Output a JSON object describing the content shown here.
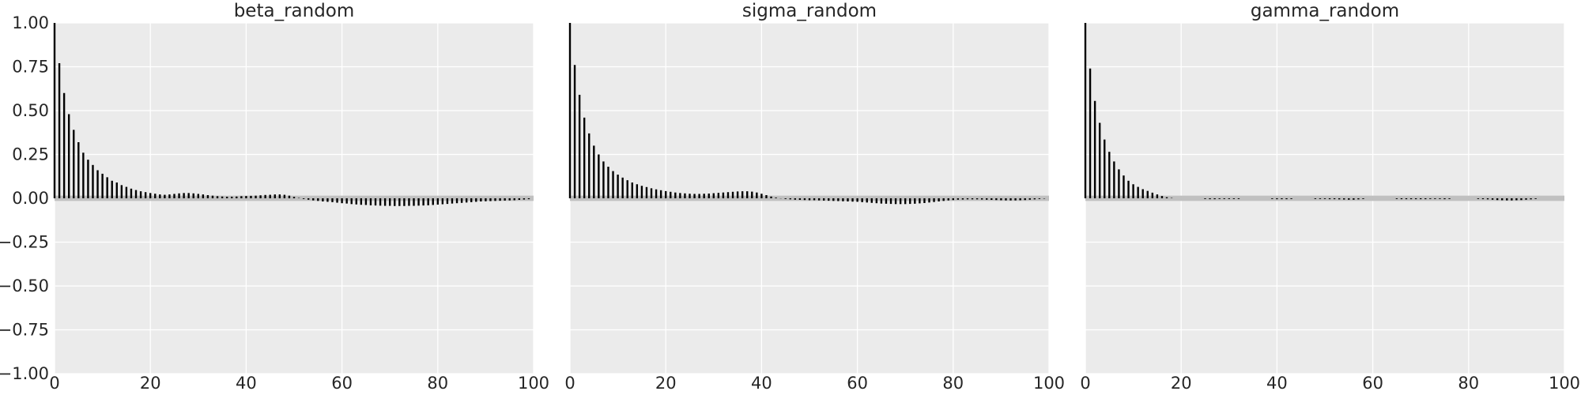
{
  "chart_data": [
    {
      "type": "bar",
      "title": "beta_random",
      "xlim": [
        0,
        100
      ],
      "ylim": [
        -1.0,
        1.0
      ],
      "xticks": [
        0,
        20,
        40,
        60,
        80,
        100
      ],
      "yticks": [
        1.0,
        0.75,
        0.5,
        0.25,
        0.0,
        -0.25,
        -0.5,
        -0.75,
        -1.0
      ],
      "ytick_labels": [
        "1.00",
        "0.75",
        "0.50",
        "0.25",
        "0.00",
        "−0.25",
        "−0.50",
        "−0.75",
        "−1.00"
      ],
      "band_color": "#c0c0c0",
      "bar_color": "#000000",
      "grid": true,
      "lags_start": 0,
      "values": [
        1.0,
        0.77,
        0.6,
        0.48,
        0.39,
        0.32,
        0.26,
        0.22,
        0.19,
        0.16,
        0.14,
        0.12,
        0.1,
        0.09,
        0.075,
        0.065,
        0.055,
        0.047,
        0.04,
        0.035,
        0.03,
        0.026,
        0.022,
        0.02,
        0.022,
        0.025,
        0.028,
        0.03,
        0.03,
        0.028,
        0.025,
        0.022,
        0.018,
        0.015,
        0.012,
        0.01,
        0.009,
        0.009,
        0.01,
        0.012,
        0.013,
        0.014,
        0.015,
        0.017,
        0.019,
        0.02,
        0.022,
        0.022,
        0.02,
        0.015,
        0.008,
        0.002,
        -0.004,
        -0.008,
        -0.012,
        -0.015,
        -0.018,
        -0.02,
        -0.022,
        -0.025,
        -0.028,
        -0.03,
        -0.033,
        -0.035,
        -0.037,
        -0.038,
        -0.04,
        -0.041,
        -0.042,
        -0.043,
        -0.043,
        -0.044,
        -0.044,
        -0.044,
        -0.043,
        -0.043,
        -0.042,
        -0.041,
        -0.04,
        -0.038,
        -0.036,
        -0.034,
        -0.032,
        -0.03,
        -0.028,
        -0.026,
        -0.024,
        -0.022,
        -0.02,
        -0.018,
        -0.017,
        -0.016,
        -0.015,
        -0.014,
        -0.013,
        -0.012,
        -0.011,
        -0.009,
        -0.007,
        -0.005
      ]
    },
    {
      "type": "bar",
      "title": "sigma_random",
      "xlim": [
        0,
        100
      ],
      "ylim": [
        -1.0,
        1.0
      ],
      "xticks": [
        0,
        20,
        40,
        60,
        80,
        100
      ],
      "band_color": "#c0c0c0",
      "bar_color": "#000000",
      "grid": true,
      "lags_start": 0,
      "values": [
        1.0,
        0.76,
        0.59,
        0.46,
        0.37,
        0.3,
        0.25,
        0.21,
        0.18,
        0.155,
        0.135,
        0.118,
        0.103,
        0.09,
        0.08,
        0.071,
        0.064,
        0.057,
        0.051,
        0.046,
        0.041,
        0.037,
        0.033,
        0.03,
        0.028,
        0.026,
        0.025,
        0.025,
        0.026,
        0.027,
        0.029,
        0.031,
        0.033,
        0.035,
        0.037,
        0.039,
        0.04,
        0.04,
        0.038,
        0.033,
        0.026,
        0.018,
        0.01,
        0.004,
        -0.001,
        -0.004,
        -0.006,
        -0.008,
        -0.009,
        -0.01,
        -0.011,
        -0.011,
        -0.012,
        -0.013,
        -0.014,
        -0.015,
        -0.016,
        -0.017,
        -0.018,
        -0.019,
        -0.02,
        -0.022,
        -0.024,
        -0.026,
        -0.028,
        -0.03,
        -0.031,
        -0.032,
        -0.033,
        -0.033,
        -0.033,
        -0.032,
        -0.031,
        -0.029,
        -0.027,
        -0.024,
        -0.021,
        -0.018,
        -0.015,
        -0.012,
        -0.01,
        -0.008,
        -0.007,
        -0.006,
        -0.006,
        -0.006,
        -0.007,
        -0.008,
        -0.009,
        -0.01,
        -0.011,
        -0.012,
        -0.012,
        -0.012,
        -0.011,
        -0.01,
        -0.008,
        -0.006,
        -0.004,
        -0.002
      ]
    },
    {
      "type": "bar",
      "title": "gamma_random",
      "xlim": [
        0,
        100
      ],
      "ylim": [
        -1.0,
        1.0
      ],
      "xticks": [
        0,
        20,
        40,
        60,
        80,
        100
      ],
      "band_color": "#c0c0c0",
      "bar_color": "#000000",
      "grid": true,
      "lags_start": 0,
      "values": [
        1.0,
        0.74,
        0.555,
        0.43,
        0.335,
        0.265,
        0.21,
        0.165,
        0.13,
        0.1,
        0.08,
        0.065,
        0.052,
        0.042,
        0.032,
        0.022,
        0.013,
        0.006,
        0.002,
        0.0,
        0.0,
        0.0,
        0.0,
        0.0,
        0.0,
        -0.004,
        -0.005,
        -0.005,
        -0.004,
        -0.004,
        -0.004,
        -0.004,
        -0.004,
        0.0,
        0.0,
        0.0,
        0.0,
        0.0,
        0.0,
        -0.004,
        -0.005,
        -0.005,
        -0.005,
        -0.004,
        0.0,
        0.0,
        0.0,
        0.0,
        -0.004,
        -0.004,
        -0.004,
        -0.005,
        -0.005,
        -0.006,
        -0.007,
        -0.008,
        -0.008,
        -0.006,
        -0.004,
        0.0,
        0.0,
        0.0,
        0.0,
        0.0,
        0.0,
        -0.004,
        -0.005,
        -0.005,
        -0.005,
        -0.005,
        -0.005,
        -0.005,
        -0.004,
        -0.004,
        -0.004,
        -0.005,
        -0.004,
        0.0,
        0.0,
        0.0,
        0.0,
        0.0,
        -0.004,
        -0.005,
        -0.006,
        -0.008,
        -0.01,
        -0.011,
        -0.012,
        -0.012,
        -0.011,
        -0.01,
        -0.008,
        -0.006,
        -0.004,
        0.0,
        0.0,
        0.0,
        0.0,
        0.0
      ]
    }
  ]
}
